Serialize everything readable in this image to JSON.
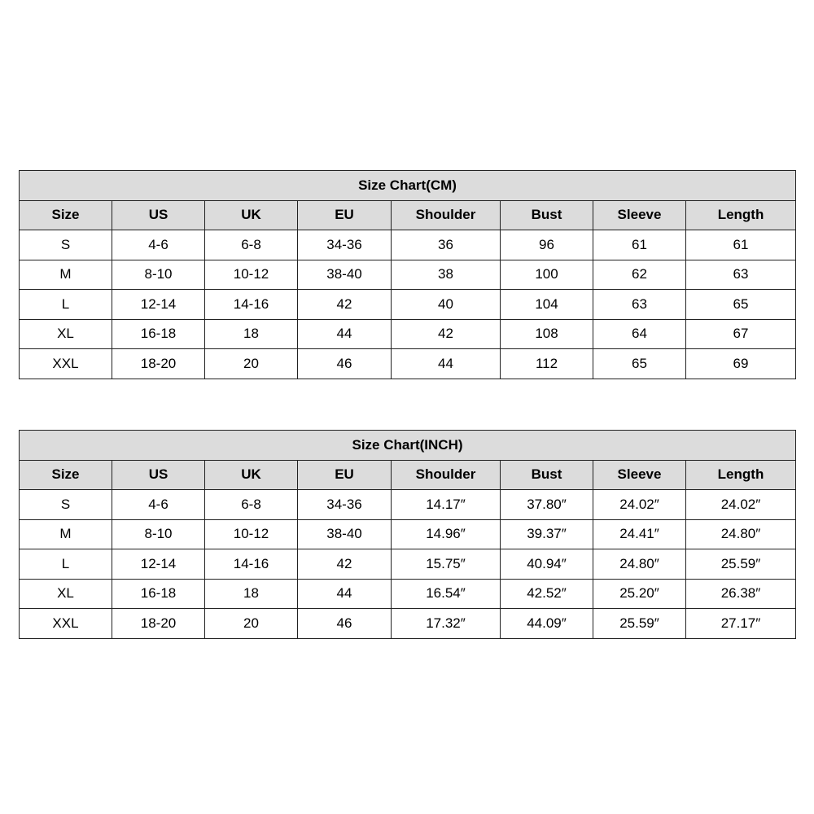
{
  "headers": [
    "Size",
    "US",
    "UK",
    "EU",
    "Shoulder",
    "Bust",
    "Sleeve",
    "Length"
  ],
  "tables": [
    {
      "title": "Size Chart(CM)",
      "rows": [
        [
          "S",
          "4-6",
          "6-8",
          "34-36",
          "36",
          "96",
          "61",
          "61"
        ],
        [
          "M",
          "8-10",
          "10-12",
          "38-40",
          "38",
          "100",
          "62",
          "63"
        ],
        [
          "L",
          "12-14",
          "14-16",
          "42",
          "40",
          "104",
          "63",
          "65"
        ],
        [
          "XL",
          "16-18",
          "18",
          "44",
          "42",
          "108",
          "64",
          "67"
        ],
        [
          "XXL",
          "18-20",
          "20",
          "46",
          "44",
          "112",
          "65",
          "69"
        ]
      ]
    },
    {
      "title": "Size Chart(INCH)",
      "rows": [
        [
          "S",
          "4-6",
          "6-8",
          "34-36",
          "14.17″",
          "37.80″",
          "24.02″",
          "24.02″"
        ],
        [
          "M",
          "8-10",
          "10-12",
          "38-40",
          "14.96″",
          "39.37″",
          "24.41″",
          "24.80″"
        ],
        [
          "L",
          "12-14",
          "14-16",
          "42",
          "15.75″",
          "40.94″",
          "24.80″",
          "25.59″"
        ],
        [
          "XL",
          "16-18",
          "18",
          "44",
          "16.54″",
          "42.52″",
          "25.20″",
          "26.38″"
        ],
        [
          "XXL",
          "18-20",
          "20",
          "46",
          "17.32″",
          "44.09″",
          "25.59″",
          "27.17″"
        ]
      ]
    }
  ],
  "colors": {
    "header_bg": "#dcdcdc",
    "border": "#222222"
  }
}
